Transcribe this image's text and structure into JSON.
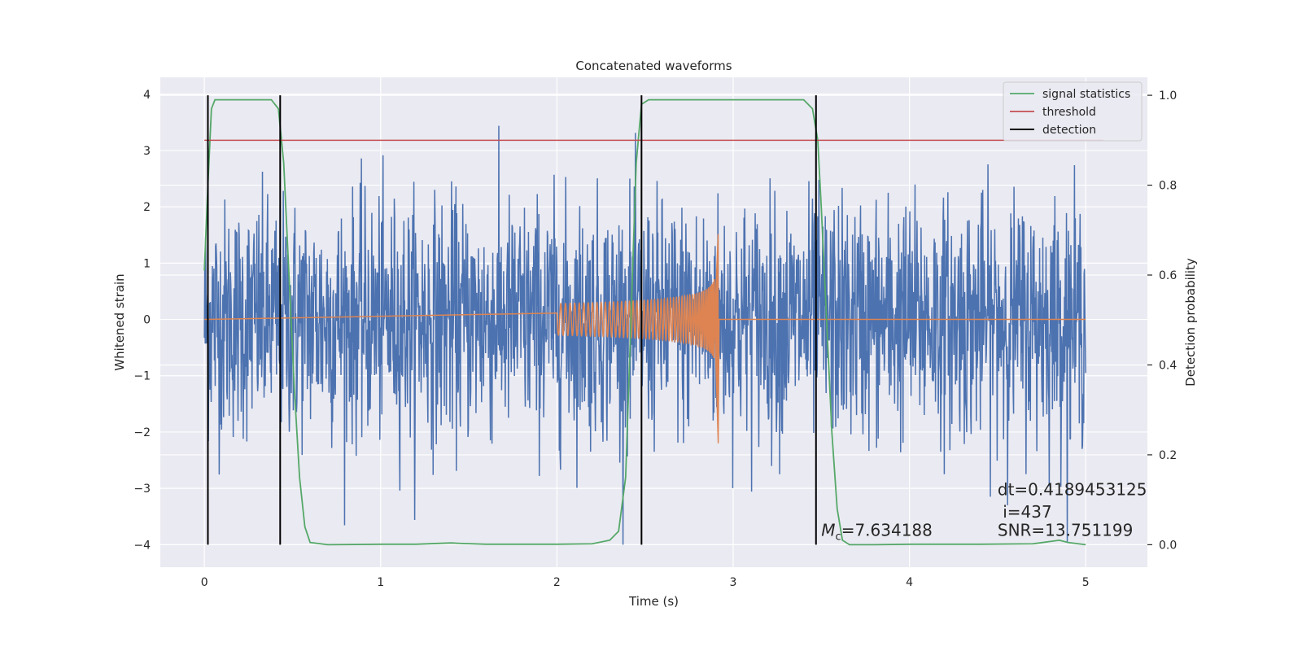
{
  "chart_data": {
    "type": "line",
    "title": "Concatenated waveforms",
    "xlabel": "Time (s)",
    "ylabel_left": "Whitened strain",
    "ylabel_right": "Detection probability",
    "xlim": [
      -0.25,
      5.35
    ],
    "ylim_left": [
      -4.4,
      4.3
    ],
    "ylim_right": [
      -0.05,
      1.04
    ],
    "xticks": [
      0,
      1,
      2,
      3,
      4,
      5
    ],
    "yticks_left": [
      -4,
      -3,
      -2,
      -1,
      0,
      1,
      2,
      3,
      4
    ],
    "yticks_right": [
      0.0,
      0.2,
      0.4,
      0.6,
      0.8,
      1.0
    ],
    "grid": true,
    "legend": {
      "placement": "top-right",
      "entries": [
        {
          "label": "signal statistics",
          "color": "#55a868"
        },
        {
          "label": "threshold",
          "color": "#c44e52"
        },
        {
          "label": "detection",
          "color": "#000000"
        }
      ]
    },
    "series": [
      {
        "name": "signal statistics",
        "axis": "right",
        "color": "#55a868",
        "x": [
          0,
          0.02,
          0.04,
          0.06,
          0.1,
          0.2,
          0.3,
          0.38,
          0.42,
          0.45,
          0.48,
          0.51,
          0.54,
          0.57,
          0.6,
          0.7,
          1.0,
          1.2,
          1.4,
          1.45,
          1.6,
          1.8,
          2.0,
          2.2,
          2.3,
          2.35,
          2.39,
          2.42,
          2.45,
          2.48,
          2.52,
          2.56,
          2.6,
          2.8,
          3.0,
          3.2,
          3.4,
          3.45,
          3.48,
          3.5,
          3.53,
          3.56,
          3.59,
          3.62,
          3.66,
          3.8,
          4.0,
          4.4,
          4.7,
          4.85,
          4.9,
          5.0
        ],
        "y": [
          0.61,
          0.8,
          0.97,
          0.99,
          0.99,
          0.99,
          0.99,
          0.99,
          0.97,
          0.85,
          0.6,
          0.35,
          0.15,
          0.04,
          0.005,
          0.0,
          0.001,
          0.001,
          0.004,
          0.003,
          0.001,
          0.001,
          0.001,
          0.002,
          0.01,
          0.03,
          0.15,
          0.5,
          0.85,
          0.98,
          0.99,
          0.99,
          0.99,
          0.99,
          0.99,
          0.99,
          0.99,
          0.97,
          0.9,
          0.75,
          0.5,
          0.25,
          0.08,
          0.01,
          0.0,
          0.0,
          0.001,
          0.001,
          0.002,
          0.01,
          0.005,
          0.0
        ]
      },
      {
        "name": "threshold",
        "axis": "right",
        "color": "#c44e52",
        "x": [
          0,
          5.1
        ],
        "y": [
          0.9,
          0.9
        ]
      },
      {
        "name": "detection",
        "axis": "right",
        "color": "#000000",
        "x_positions": [
          0.02,
          0.43,
          2.48,
          3.47
        ],
        "y_range": [
          0.0,
          1.0
        ]
      },
      {
        "name": "",
        "axis": "left",
        "color": "#4c72b0",
        "kind": "noise",
        "x_range": [
          0,
          5
        ],
        "amplitude_range": [
          -4,
          3.5
        ]
      },
      {
        "name": "",
        "axis": "left",
        "color": "#dd8452",
        "kind": "chirp",
        "x_range": [
          2.0,
          2.92
        ],
        "peak": [
          -2.2,
          1.5
        ]
      }
    ],
    "annotations": [
      {
        "text": "dt=0.4189453125",
        "x": 4.5,
        "y": 0.11
      },
      {
        "text": " i=437",
        "x": 4.5,
        "y": 0.06
      },
      {
        "text": "SNR=13.751199",
        "x": 4.5,
        "y": 0.02
      },
      {
        "text": "=7.634188",
        "prefix": "M",
        "subscript": "c",
        "x": 3.5,
        "y": 0.02
      }
    ]
  }
}
